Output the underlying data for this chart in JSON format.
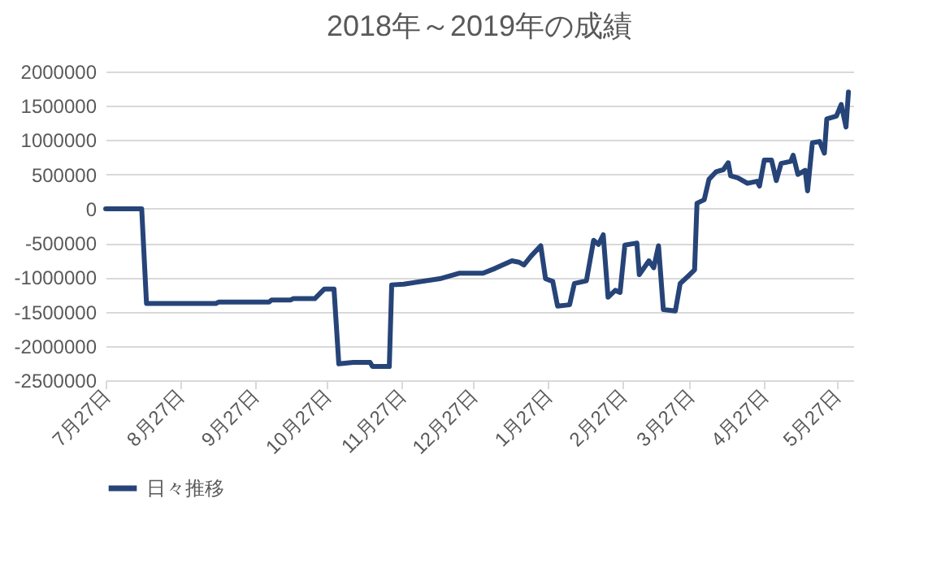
{
  "chart_data": {
    "type": "line",
    "title": "2018年～2019年の成績",
    "x": [
      "2018-07-27",
      "2018-08-11",
      "2018-08-13",
      "2018-09-11",
      "2018-09-12",
      "2018-10-03",
      "2018-10-04",
      "2018-10-12",
      "2018-10-13",
      "2018-10-22",
      "2018-10-26",
      "2018-10-30",
      "2018-11-01",
      "2018-11-07",
      "2018-11-14",
      "2018-11-15",
      "2018-11-22",
      "2018-11-23",
      "2018-11-28",
      "2018-12-13",
      "2018-12-21",
      "2018-12-31",
      "2019-01-05",
      "2019-01-12",
      "2019-01-15",
      "2019-01-17",
      "2019-01-20",
      "2019-01-24",
      "2019-01-26",
      "2019-01-29",
      "2019-01-31",
      "2019-02-05",
      "2019-02-07",
      "2019-02-12",
      "2019-02-15",
      "2019-02-17",
      "2019-02-19",
      "2019-02-21",
      "2019-02-24",
      "2019-02-26",
      "2019-02-28",
      "2019-03-05",
      "2019-03-06",
      "2019-03-10",
      "2019-03-12",
      "2019-03-14",
      "2019-03-16",
      "2019-03-21",
      "2019-03-23",
      "2019-03-27",
      "2019-03-29",
      "2019-03-30",
      "2019-04-02",
      "2019-04-04",
      "2019-04-07",
      "2019-04-10",
      "2019-04-12",
      "2019-04-13",
      "2019-04-16",
      "2019-04-20",
      "2019-04-24",
      "2019-04-25",
      "2019-04-27",
      "2019-04-30",
      "2019-05-02",
      "2019-05-04",
      "2019-05-08",
      "2019-05-09",
      "2019-05-11",
      "2019-05-14",
      "2019-05-15",
      "2019-05-17",
      "2019-05-20",
      "2019-05-22",
      "2019-05-23",
      "2019-05-27",
      "2019-05-29",
      "2019-05-31",
      "2019-06-01"
    ],
    "series": [
      {
        "name": "日々推移",
        "color": "#264478",
        "values": [
          0,
          0,
          -1380000,
          -1380000,
          -1360000,
          -1360000,
          -1330000,
          -1330000,
          -1310000,
          -1310000,
          -1170000,
          -1170000,
          -2260000,
          -2240000,
          -2240000,
          -2300000,
          -2300000,
          -1110000,
          -1100000,
          -1020000,
          -940000,
          -940000,
          -870000,
          -760000,
          -780000,
          -820000,
          -690000,
          -540000,
          -1020000,
          -1060000,
          -1420000,
          -1400000,
          -1090000,
          -1050000,
          -460000,
          -520000,
          -380000,
          -1290000,
          -1190000,
          -1220000,
          -530000,
          -500000,
          -960000,
          -760000,
          -860000,
          -540000,
          -1470000,
          -1490000,
          -1090000,
          -960000,
          -890000,
          80000,
          130000,
          430000,
          540000,
          570000,
          670000,
          480000,
          450000,
          370000,
          400000,
          330000,
          710000,
          710000,
          410000,
          660000,
          690000,
          780000,
          500000,
          560000,
          260000,
          960000,
          980000,
          810000,
          1310000,
          1350000,
          1520000,
          1190000,
          1700000
        ]
      }
    ],
    "xlim": [
      "2018-07-27",
      "2019-06-03"
    ],
    "xticks": [
      {
        "value": "2018-07-27",
        "label": "7月27日"
      },
      {
        "value": "2018-08-27",
        "label": "8月27日"
      },
      {
        "value": "2018-09-27",
        "label": "9月27日"
      },
      {
        "value": "2018-10-27",
        "label": "10月27日"
      },
      {
        "value": "2018-11-27",
        "label": "11月27日"
      },
      {
        "value": "2018-12-27",
        "label": "12月27日"
      },
      {
        "value": "2019-01-27",
        "label": "1月27日"
      },
      {
        "value": "2019-02-27",
        "label": "2月27日"
      },
      {
        "value": "2019-03-27",
        "label": "3月27日"
      },
      {
        "value": "2019-04-27",
        "label": "4月27日"
      },
      {
        "value": "2019-05-27",
        "label": "5月27日"
      }
    ],
    "ylim": [
      -2500000,
      2000000
    ],
    "yticks": [
      -2500000,
      -2000000,
      -1500000,
      -1000000,
      -500000,
      0,
      500000,
      1000000,
      1500000,
      2000000
    ],
    "grid": "y",
    "legend": "bottom"
  }
}
